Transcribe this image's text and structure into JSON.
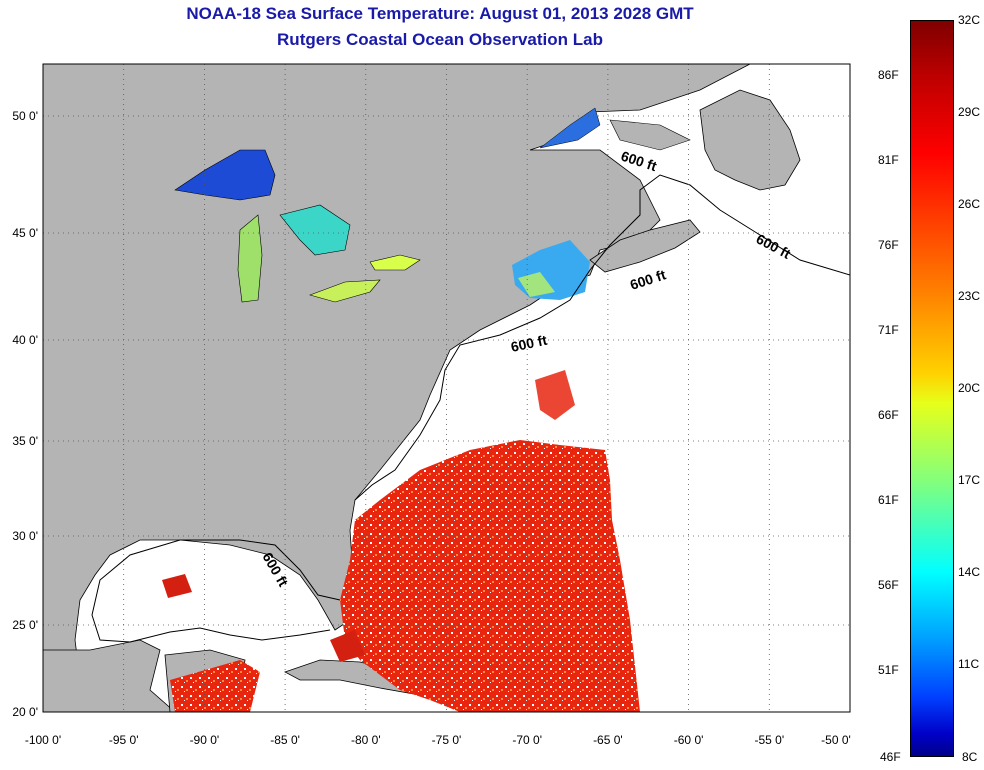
{
  "title": {
    "line1": "NOAA-18 Sea Surface Temperature:  August 01, 2013 2028 GMT",
    "line2": "Rutgers Coastal Ocean Observation Lab"
  },
  "axes": {
    "lon_labels": [
      "-100 0'",
      "-95 0'",
      "-90 0'",
      "-85 0'",
      "-80 0'",
      "-75 0'",
      "-70 0'",
      "-65 0'",
      "-60 0'",
      "-55 0'",
      "-50 0'"
    ],
    "lat_labels": [
      "50 0'",
      "45 0'",
      "40 0'",
      "35 0'",
      "30 0'",
      "25 0'",
      "20 0'"
    ]
  },
  "contour_label": "600 ft",
  "colorbar": {
    "celsius": [
      "32C",
      "29C",
      "26C",
      "23C",
      "20C",
      "17C",
      "14C",
      "11C",
      "8C"
    ],
    "fahrenheit": [
      "86F",
      "81F",
      "76F",
      "71F",
      "66F",
      "61F",
      "56F",
      "51F",
      "46F"
    ]
  },
  "colors": {
    "land": "#b4b4b4",
    "ocean": "#ffffff",
    "title": "#1a1aa8",
    "warm_sst": "#e8250f",
    "cool_sst": "#2a6ee0"
  }
}
